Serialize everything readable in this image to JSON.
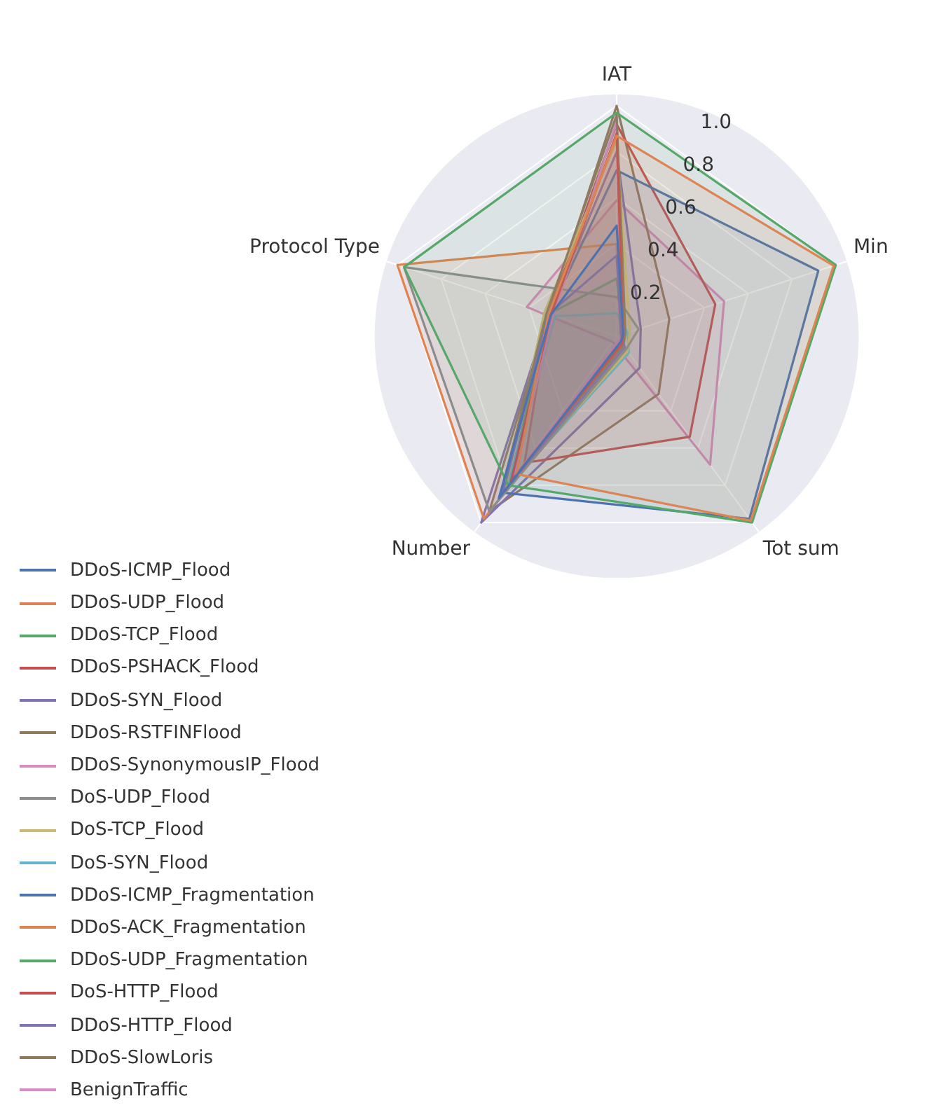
{
  "chart_data": {
    "type": "radar",
    "categories": [
      "IAT",
      "Min",
      "Tot sum",
      "Number",
      "Protocol Type"
    ],
    "ylim": [
      0,
      1.05
    ],
    "yticks": [
      0.2,
      0.4,
      0.6,
      0.8,
      {
        "value": 1,
        "label": "1.0"
      }
    ],
    "grid": true,
    "legend": "bottom left",
    "marker": "none",
    "series": [
      {
        "name": "DDoS-ICMP_Flood",
        "color": "#4c72b0",
        "values": [
          0.48,
          0.03,
          0.03,
          0.87,
          0.3
        ]
      },
      {
        "name": "DDoS-UDP_Flood",
        "color": "#dd8452",
        "values": [
          0.87,
          0.99,
          0.99,
          0.74,
          0.31
        ]
      },
      {
        "name": "DDoS-TCP_Flood",
        "color": "#55a868",
        "values": [
          0.97,
          1.0,
          1.0,
          0.8,
          0.97
        ]
      },
      {
        "name": "DDoS-PSHACK_Flood",
        "color": "#c44e52",
        "values": [
          0.88,
          0.03,
          0.04,
          0.78,
          0.3
        ]
      },
      {
        "name": "DDoS-SYN_Flood",
        "color": "#8172b3",
        "values": [
          0.35,
          0.02,
          0.06,
          0.84,
          0.31
        ]
      },
      {
        "name": "DDoS-RSTFINFlood",
        "color": "#937860",
        "values": [
          0.96,
          0.04,
          0.05,
          0.86,
          0.32
        ]
      },
      {
        "name": "DDoS-SynonymousIP_Flood",
        "color": "#da8bc3",
        "values": [
          0.93,
          0.02,
          0.02,
          0.76,
          0.29
        ]
      },
      {
        "name": "DoS-UDP_Flood",
        "color": "#8c8c8c",
        "values": [
          0.17,
          0.1,
          0.07,
          0.94,
          0.97
        ]
      },
      {
        "name": "DoS-TCP_Flood",
        "color": "#ccb974",
        "values": [
          0.85,
          0.06,
          0.08,
          0.82,
          0.33
        ]
      },
      {
        "name": "DoS-SYN_Flood",
        "color": "#64b5cd",
        "values": [
          0.1,
          0.05,
          0.09,
          0.81,
          0.28
        ]
      },
      {
        "name": "DDoS-ICMP_Fragmentation",
        "color": "#4c72b0",
        "values": [
          0.72,
          0.92,
          0.98,
          0.84,
          0.31
        ]
      },
      {
        "name": "DDoS-ACK_Fragmentation",
        "color": "#dd8452",
        "values": [
          0.4,
          0.02,
          0.03,
          0.98,
          1.0
        ]
      },
      {
        "name": "DDoS-UDP_Fragmentation",
        "color": "#55a868",
        "values": [
          0.25,
          0.03,
          0.05,
          0.79,
          0.31
        ]
      },
      {
        "name": "DoS-HTTP_Flood",
        "color": "#c44e52",
        "values": [
          0.92,
          0.45,
          0.54,
          0.68,
          0.31
        ]
      },
      {
        "name": "DDoS-HTTP_Flood",
        "color": "#8172b3",
        "values": [
          0.8,
          0.11,
          0.17,
          1.0,
          0.31
        ]
      },
      {
        "name": "DDoS-SlowLoris",
        "color": "#937860",
        "values": [
          1.0,
          0.24,
          0.31,
          0.94,
          0.31
        ]
      },
      {
        "name": "BenignTraffic",
        "color": "#da8bc3",
        "values": [
          0.59,
          0.49,
          0.69,
          0.03,
          0.41
        ]
      }
    ]
  }
}
